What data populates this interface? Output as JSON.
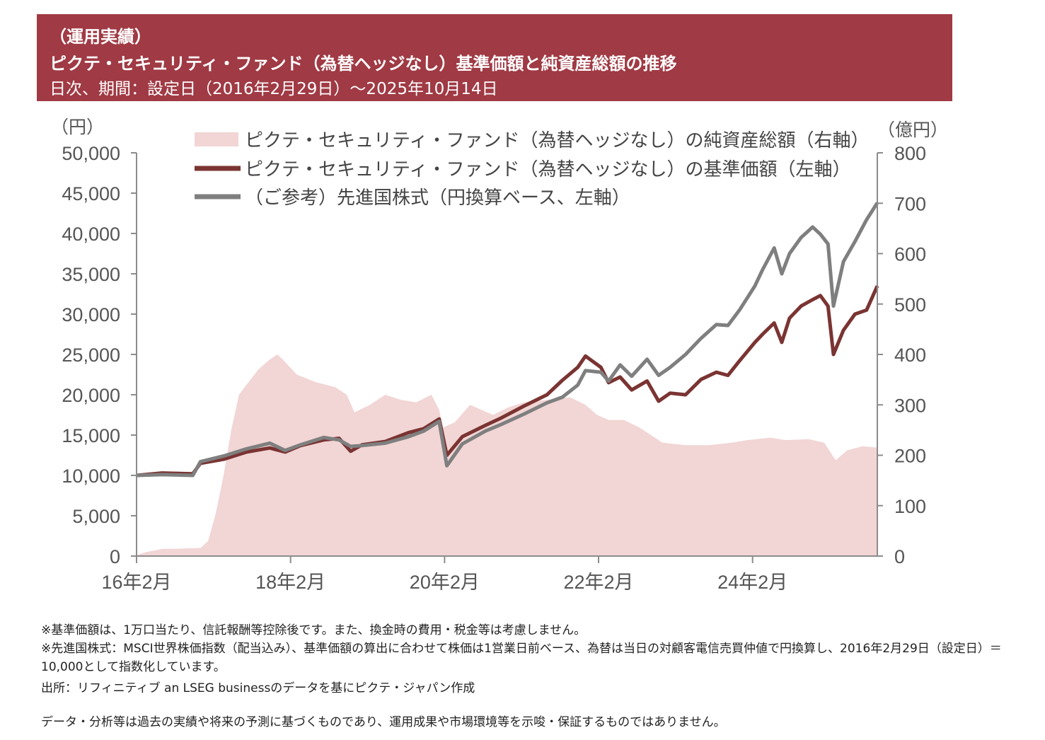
{
  "header": {
    "line1": "（運用実績）",
    "line2": "ピクテ・セキュリティ・ファンド（為替ヘッジなし）基準価額と純資産総額の推移",
    "line3": "日次、期間：設定日（2016年2月29日）～2025年10月14日"
  },
  "chart_data": {
    "type": "line",
    "left_axis_unit": "（円）",
    "right_axis_unit": "（億円）",
    "left_ylim": [
      0,
      50000
    ],
    "right_ylim": [
      0,
      800
    ],
    "left_ticks": [
      "50,000",
      "45,000",
      "40,000",
      "35,000",
      "30,000",
      "25,000",
      "20,000",
      "15,000",
      "10,000",
      "5,000",
      "0"
    ],
    "right_ticks": [
      "800",
      "700",
      "600",
      "500",
      "400",
      "300",
      "200",
      "100",
      "0"
    ],
    "x_range": [
      2016.17,
      2025.79
    ],
    "x_ticks": [
      {
        "label": "16年2月",
        "x": 2016.17
      },
      {
        "label": "18年2月",
        "x": 2018.17
      },
      {
        "label": "20年2月",
        "x": 2020.17
      },
      {
        "label": "22年2月",
        "x": 2022.17
      },
      {
        "label": "24年2月",
        "x": 2024.17
      }
    ],
    "legend_position": "top",
    "series": [
      {
        "name": "ピクテ・セキュリティ・ファンド（為替ヘッジなし）の純資産総額（右軸）",
        "type": "area",
        "axis": "right",
        "color": "#f2d5d5",
        "points": [
          [
            2016.17,
            2
          ],
          [
            2016.3,
            8
          ],
          [
            2016.5,
            14
          ],
          [
            2016.8,
            15
          ],
          [
            2017.0,
            16
          ],
          [
            2017.1,
            30
          ],
          [
            2017.2,
            85
          ],
          [
            2017.3,
            160
          ],
          [
            2017.4,
            250
          ],
          [
            2017.5,
            320
          ],
          [
            2017.6,
            340
          ],
          [
            2017.75,
            370
          ],
          [
            2017.9,
            390
          ],
          [
            2018.0,
            400
          ],
          [
            2018.1,
            385
          ],
          [
            2018.25,
            360
          ],
          [
            2018.5,
            345
          ],
          [
            2018.75,
            335
          ],
          [
            2018.9,
            320
          ],
          [
            2019.0,
            285
          ],
          [
            2019.2,
            300
          ],
          [
            2019.4,
            320
          ],
          [
            2019.6,
            310
          ],
          [
            2019.8,
            305
          ],
          [
            2020.0,
            320
          ],
          [
            2020.1,
            290
          ],
          [
            2020.15,
            255
          ],
          [
            2020.3,
            265
          ],
          [
            2020.5,
            300
          ],
          [
            2020.8,
            280
          ],
          [
            2021.0,
            295
          ],
          [
            2021.2,
            305
          ],
          [
            2021.5,
            310
          ],
          [
            2021.8,
            315
          ],
          [
            2022.0,
            300
          ],
          [
            2022.15,
            280
          ],
          [
            2022.3,
            270
          ],
          [
            2022.5,
            270
          ],
          [
            2022.7,
            255
          ],
          [
            2022.9,
            235
          ],
          [
            2023.0,
            225
          ],
          [
            2023.3,
            220
          ],
          [
            2023.6,
            220
          ],
          [
            2023.9,
            225
          ],
          [
            2024.1,
            230
          ],
          [
            2024.4,
            235
          ],
          [
            2024.6,
            230
          ],
          [
            2024.9,
            232
          ],
          [
            2025.1,
            225
          ],
          [
            2025.25,
            190
          ],
          [
            2025.4,
            210
          ],
          [
            2025.6,
            218
          ],
          [
            2025.79,
            215
          ]
        ]
      },
      {
        "name": "ピクテ・セキュリティ・ファンド（為替ヘッジなし）の基準価額（左軸）",
        "type": "line",
        "axis": "left",
        "color": "#7a3432",
        "points": [
          [
            2016.17,
            10000
          ],
          [
            2016.5,
            10300
          ],
          [
            2016.9,
            10200
          ],
          [
            2017.0,
            11500
          ],
          [
            2017.3,
            12000
          ],
          [
            2017.6,
            12900
          ],
          [
            2017.9,
            13400
          ],
          [
            2018.1,
            12900
          ],
          [
            2018.3,
            13700
          ],
          [
            2018.6,
            14400
          ],
          [
            2018.8,
            14600
          ],
          [
            2018.95,
            13000
          ],
          [
            2019.1,
            13800
          ],
          [
            2019.4,
            14200
          ],
          [
            2019.7,
            15300
          ],
          [
            2019.9,
            15800
          ],
          [
            2020.1,
            17000
          ],
          [
            2020.2,
            12500
          ],
          [
            2020.4,
            14800
          ],
          [
            2020.7,
            16200
          ],
          [
            2020.9,
            17100
          ],
          [
            2021.2,
            18600
          ],
          [
            2021.5,
            20000
          ],
          [
            2021.7,
            21800
          ],
          [
            2021.9,
            23400
          ],
          [
            2022.0,
            24800
          ],
          [
            2022.2,
            23400
          ],
          [
            2022.3,
            21500
          ],
          [
            2022.45,
            22200
          ],
          [
            2022.6,
            20600
          ],
          [
            2022.8,
            21700
          ],
          [
            2022.95,
            19200
          ],
          [
            2023.1,
            20200
          ],
          [
            2023.3,
            20000
          ],
          [
            2023.5,
            21900
          ],
          [
            2023.7,
            22800
          ],
          [
            2023.85,
            22400
          ],
          [
            2024.0,
            24200
          ],
          [
            2024.2,
            26500
          ],
          [
            2024.3,
            27500
          ],
          [
            2024.45,
            28900
          ],
          [
            2024.55,
            26500
          ],
          [
            2024.65,
            29500
          ],
          [
            2024.8,
            31000
          ],
          [
            2024.95,
            31800
          ],
          [
            2025.05,
            32300
          ],
          [
            2025.15,
            31000
          ],
          [
            2025.22,
            25000
          ],
          [
            2025.35,
            28000
          ],
          [
            2025.5,
            30000
          ],
          [
            2025.65,
            30500
          ],
          [
            2025.79,
            33500
          ]
        ]
      },
      {
        "name": "（ご参考）先進国株式（円換算ベース、左軸）",
        "type": "line",
        "axis": "left",
        "color": "#7f7f7f",
        "points": [
          [
            2016.17,
            10000
          ],
          [
            2016.5,
            10100
          ],
          [
            2016.9,
            10000
          ],
          [
            2017.0,
            11700
          ],
          [
            2017.3,
            12400
          ],
          [
            2017.6,
            13300
          ],
          [
            2017.9,
            14000
          ],
          [
            2018.1,
            13100
          ],
          [
            2018.3,
            13800
          ],
          [
            2018.6,
            14700
          ],
          [
            2018.8,
            14400
          ],
          [
            2018.95,
            13600
          ],
          [
            2019.1,
            13700
          ],
          [
            2019.4,
            14000
          ],
          [
            2019.7,
            14800
          ],
          [
            2019.9,
            15500
          ],
          [
            2020.1,
            16700
          ],
          [
            2020.2,
            11200
          ],
          [
            2020.4,
            13900
          ],
          [
            2020.7,
            15500
          ],
          [
            2020.9,
            16300
          ],
          [
            2021.2,
            17600
          ],
          [
            2021.5,
            19000
          ],
          [
            2021.7,
            19700
          ],
          [
            2021.9,
            21200
          ],
          [
            2022.0,
            23000
          ],
          [
            2022.2,
            22800
          ],
          [
            2022.3,
            21700
          ],
          [
            2022.45,
            23700
          ],
          [
            2022.6,
            22300
          ],
          [
            2022.8,
            24400
          ],
          [
            2022.95,
            22400
          ],
          [
            2023.1,
            23400
          ],
          [
            2023.3,
            25000
          ],
          [
            2023.5,
            27000
          ],
          [
            2023.7,
            28700
          ],
          [
            2023.85,
            28600
          ],
          [
            2024.0,
            30500
          ],
          [
            2024.2,
            33500
          ],
          [
            2024.3,
            35500
          ],
          [
            2024.45,
            38200
          ],
          [
            2024.55,
            35000
          ],
          [
            2024.65,
            37500
          ],
          [
            2024.8,
            39500
          ],
          [
            2024.95,
            40800
          ],
          [
            2025.05,
            39900
          ],
          [
            2025.15,
            38700
          ],
          [
            2025.22,
            31000
          ],
          [
            2025.35,
            36500
          ],
          [
            2025.5,
            39000
          ],
          [
            2025.65,
            41700
          ],
          [
            2025.79,
            43800
          ]
        ]
      }
    ]
  },
  "notes": {
    "n1": "※基準価額は、1万口当たり、信託報酬等控除後です。また、換金時の費用・税金等は考慮しません。",
    "n2": "※先進国株式：MSCI世界株価指数（配当込み）、基準価額の算出に合わせて株価は1営業日前ベース、為替は当日の対顧客電信売買仲値で円換算し、2016年2月29日（設定日）＝10,000として指数化しています。",
    "source": "出所：リフィニティブ an LSEG businessのデータを基にピクテ・ジャパン作成",
    "disclaimer": "データ・分析等は過去の実績や将来の予測に基づくものであり、運用成果や市場環境等を示唆・保証するものではありません。"
  }
}
